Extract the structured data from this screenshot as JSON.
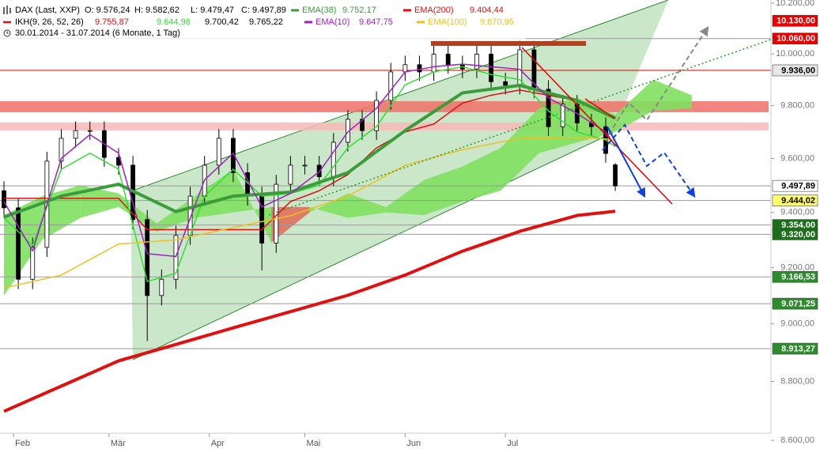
{
  "chart_data": {
    "type": "candlestick",
    "instrument": "DAX (Last, XXP)",
    "ohlc_labels": [
      "O: 9.576,24",
      "H: 9.582,62",
      "L: 9.479,47",
      "C: 9.497,89"
    ],
    "period": "30.01.2014 - 31.07.2014 (6 Monate, 1 Tag)",
    "x": [
      0,
      3,
      6,
      9,
      12,
      15,
      18,
      21,
      24,
      27,
      30,
      33,
      36,
      39,
      42,
      45,
      48,
      51,
      54,
      57,
      60,
      63,
      66,
      69,
      72,
      75,
      78,
      81,
      84,
      87,
      90,
      93,
      96,
      99,
      102,
      105,
      108,
      111,
      114,
      117,
      120,
      123,
      126,
      128
    ],
    "open": [
      9480,
      9417,
      9158,
      9273,
      9590,
      9676,
      9705,
      9705,
      9604,
      9575,
      9374,
      9100,
      9158,
      9316,
      9460,
      9575,
      9676,
      9547,
      9460,
      9288,
      9504,
      9575,
      9575,
      9532,
      9661,
      9748,
      9705,
      9820,
      9930,
      9958,
      9930,
      9999,
      9958,
      9941,
      9999,
      9892,
      9878,
      10016,
      9863,
      9720,
      9806,
      9734,
      9720,
      9576.24
    ],
    "high": [
      9515,
      9452,
      9308,
      9625,
      9711,
      9740,
      9740,
      9740,
      9639,
      9610,
      9409,
      9193,
      9351,
      9495,
      9610,
      9711,
      9711,
      9582,
      9495,
      9539,
      9610,
      9610,
      9610,
      9696,
      9783,
      9783,
      9855,
      9965,
      9993,
      9993,
      10034,
      10034,
      9993,
      10034,
      10034,
      9927,
      10051,
      10051,
      9898,
      9841,
      9841,
      9769,
      9755,
      9582.62
    ],
    "low": [
      9382,
      9123,
      9123,
      9238,
      9555,
      9641,
      9670,
      9569,
      9540,
      9339,
      8940,
      9065,
      9123,
      9281,
      9425,
      9540,
      9512,
      9425,
      9190,
      9253,
      9469,
      9540,
      9497,
      9497,
      9626,
      9670,
      9670,
      9785,
      9895,
      9895,
      9895,
      9923,
      9906,
      9906,
      9857,
      9843,
      9843,
      9828,
      9685,
      9685,
      9699,
      9685,
      9584,
      9479.47
    ],
    "close": [
      9417,
      9158,
      9273,
      9590,
      9676,
      9705,
      9705,
      9604,
      9575,
      9374,
      9100,
      9158,
      9316,
      9460,
      9575,
      9676,
      9547,
      9460,
      9288,
      9504,
      9575,
      9575,
      9532,
      9661,
      9748,
      9705,
      9820,
      9930,
      9958,
      9930,
      9999,
      9958,
      9941,
      9999,
      9892,
      9878,
      10016,
      9863,
      9720,
      9806,
      9734,
      9720,
      9619,
      9497.89
    ],
    "up_color": "#ffffff",
    "down_color": "#000000",
    "xlim": [
      -0.83,
      160.6
    ],
    "xticks": [
      {
        "value": 2,
        "label": "Feb"
      },
      {
        "value": 22,
        "label": "Mär"
      },
      {
        "value": 43,
        "label": "Apr"
      },
      {
        "value": 63,
        "label": "Mai"
      },
      {
        "value": 84,
        "label": "Jun"
      },
      {
        "value": 105,
        "label": "Jul"
      }
    ],
    "ylim": [
      8600,
      10200
    ],
    "log_y": true,
    "yticks": [
      {
        "value": 8600,
        "label": "8.600,00"
      },
      {
        "value": 8800,
        "label": "8.800,00"
      },
      {
        "value": 9000,
        "label": "9.000,00"
      },
      {
        "value": 9200,
        "label": "9.200,00"
      },
      {
        "value": 9400,
        "label": "9.400,00"
      },
      {
        "value": 9600,
        "label": "9.600,00"
      },
      {
        "value": 9800,
        "label": "9.800,00"
      },
      {
        "value": 10000,
        "label": "10.000,00"
      },
      {
        "value": 10200,
        "label": "10.200,00"
      }
    ],
    "series": [
      {
        "name": "EMA(38)",
        "color": "#3c9c3c",
        "width": 4,
        "value_label": "9.752,17",
        "x": [
          0,
          12,
          24,
          36,
          48,
          60,
          72,
          84,
          96,
          108,
          120,
          128
        ],
        "values": [
          9383,
          9460,
          9504,
          9403,
          9460,
          9475,
          9547,
          9705,
          9849,
          9878,
          9820,
          9752.17
        ]
      },
      {
        "name": "EMA(200)",
        "color": "#e01010",
        "width": 4,
        "value_label": "9.404,44",
        "x": [
          0,
          12,
          24,
          36,
          48,
          60,
          72,
          84,
          96,
          108,
          120,
          128
        ],
        "values": [
          8698,
          8784,
          8871,
          8928,
          8986,
          9043,
          9101,
          9173,
          9259,
          9331,
          9389,
          9404.44
        ]
      },
      {
        "name": "EMA(10)",
        "color": "#a020c0",
        "width": 1.5,
        "value_label": "9.647,75",
        "x": [
          0,
          6,
          12,
          18,
          24,
          30,
          36,
          42,
          48,
          54,
          60,
          66,
          72,
          78,
          84,
          90,
          96,
          102,
          108,
          114,
          120,
          126,
          128
        ],
        "values": [
          9440,
          9260,
          9600,
          9690,
          9620,
          9250,
          9240,
          9520,
          9620,
          9420,
          9470,
          9550,
          9700,
          9790,
          9930,
          9950,
          9960,
          9950,
          9940,
          9830,
          9770,
          9700,
          9647.75
        ]
      },
      {
        "name": "EMA(100)",
        "color": "#f0c020",
        "width": 1.5,
        "value_label": "9.670,95",
        "x": [
          0,
          12,
          24,
          36,
          48,
          60,
          72,
          84,
          96,
          108,
          120,
          128
        ],
        "values": [
          9127,
          9173,
          9285,
          9300,
          9345,
          9388,
          9460,
          9575,
          9633,
          9676,
          9680,
          9670.95
        ]
      }
    ],
    "ikh": {
      "name": "IKH(9, 26, 52, 26)",
      "color": "#dd1111",
      "lines": [
        {
          "color": "#dd1111",
          "value_label": "9.755,87",
          "x": [
            0,
            6,
            12,
            18,
            24,
            30,
            36,
            42,
            48,
            54,
            60,
            66,
            72,
            78,
            84,
            90,
            96,
            102,
            108,
            114,
            120,
            126,
            128
          ],
          "values": [
            9452,
            9452,
            9452,
            9452,
            9452,
            9337,
            9337,
            9337,
            9337,
            9337,
            9440,
            9480,
            9540,
            9640,
            9700,
            9730,
            9810,
            9840,
            9860,
            9840,
            9820,
            9770,
            9755.87
          ]
        },
        {
          "color": "#33dd33",
          "value_label": "9.644,96",
          "x": [
            0,
            6,
            12,
            18,
            24,
            30,
            36,
            42,
            48,
            54,
            60,
            66,
            72,
            78,
            84,
            90,
            96,
            102,
            108,
            114,
            120,
            126,
            128
          ],
          "values": [
            9380,
            9280,
            9560,
            9620,
            9560,
            9150,
            9180,
            9460,
            9560,
            9460,
            9470,
            9500,
            9640,
            9720,
            9880,
            9930,
            9950,
            9920,
            9900,
            9780,
            9700,
            9670,
            9644.96
          ]
        }
      ],
      "cloud": {
        "up_color": "#80e060",
        "down_color": "#e07060",
        "span_b_label": "9.700,42",
        "span_a_label": "9.765,22",
        "x": [
          0,
          8,
          16,
          24,
          32,
          40,
          48,
          56,
          64,
          72,
          80,
          88,
          96,
          104,
          112,
          120,
          128,
          136,
          144
        ],
        "span_a": [
          9390,
          9460,
          9500,
          9470,
          9360,
          9460,
          9560,
          9290,
          9400,
          9470,
          9420,
          9520,
          9570,
          9640,
          9790,
          9830,
          9765.22,
          9900,
          9840
        ],
        "span_b": [
          9100,
          9300,
          9380,
          9420,
          9330,
          9380,
          9400,
          9420,
          9420,
          9380,
          9400,
          9390,
          9440,
          9480,
          9620,
          9660,
          9700.42,
          9780,
          9790
        ]
      }
    },
    "zones": [
      {
        "from": 9775,
        "to": 9817,
        "color": "#f07068"
      },
      {
        "from": 9706,
        "to": 9736,
        "color": "#f8b8b8"
      }
    ],
    "levels": [
      {
        "value": 10130,
        "label": "10.130,00",
        "bg": "#e60000",
        "fg": "#ffffff"
      },
      {
        "value": 10060,
        "label": "10.060,00",
        "bg": "#e60000",
        "fg": "#ffffff",
        "line_color": "#999999"
      },
      {
        "value": 9936,
        "label": "9.936,00",
        "bg": "#e8e8e8",
        "fg": "#000000",
        "line_color": "#dd0000"
      },
      {
        "value": 9497.89,
        "label": "9.497,89",
        "bg": "#ffffff",
        "fg": "#000000",
        "line_color": "#999999"
      },
      {
        "value": 9444.02,
        "label": "9.444,02",
        "bg": "#ffff66",
        "fg": "#000000",
        "line_color": "#999999"
      },
      {
        "value": 9354,
        "label": "9.354,00",
        "bg": "#1e6e1e",
        "fg": "#ffffff",
        "line_color": "#999999"
      },
      {
        "value": 9320,
        "label": "9.320,00",
        "bg": "#1e6e1e",
        "fg": "#ffffff",
        "line_color": "#999999"
      },
      {
        "value": 9166.53,
        "label": "9.166,53",
        "bg": "#2e8b2e",
        "fg": "#ffffff",
        "line_color": "#999999"
      },
      {
        "value": 9071.25,
        "label": "9.071,25",
        "bg": "#2e8b2e",
        "fg": "#ffffff",
        "line_color": "#999999"
      },
      {
        "value": 8913.27,
        "label": "8.913,27",
        "bg": "#2e8b2e",
        "fg": "#ffffff",
        "line_color": "#999999"
      }
    ]
  }
}
